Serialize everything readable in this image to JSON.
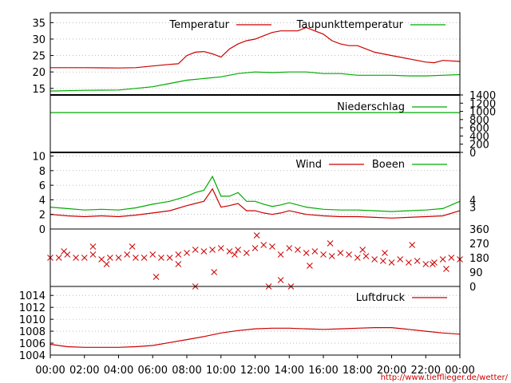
{
  "colors": {
    "red": "#cc0000",
    "green": "#00aa00",
    "grid": "#999999",
    "axis": "#000000"
  },
  "footer_link": "http://www.tiefflieger.de/wetter/",
  "x_ticks": [
    "00:00",
    "02:00",
    "04:00",
    "06:00",
    "08:00",
    "10:00",
    "12:00",
    "14:00",
    "16:00",
    "18:00",
    "20:00",
    "22:00",
    "00:00"
  ],
  "chart_data": [
    {
      "type": "line",
      "panel": "temperature",
      "x_range_hours": [
        0,
        24
      ],
      "ylim": [
        13,
        38
      ],
      "y_ticks": [
        "15",
        "20",
        "25",
        "30",
        "35"
      ],
      "series": [
        {
          "name": "Temperatur",
          "color": "#cc0000",
          "x": [
            0,
            2,
            4,
            5,
            6,
            7,
            7.5,
            8,
            8.5,
            9,
            9.5,
            10,
            10.5,
            11,
            11.5,
            12,
            12.5,
            13,
            13.5,
            14,
            14.5,
            15,
            15.5,
            16,
            16.5,
            17,
            17.5,
            18,
            18.5,
            19,
            19.5,
            20,
            21,
            22,
            22.5,
            23,
            24
          ],
          "y": [
            21.3,
            21.3,
            21.2,
            21.3,
            21.8,
            22.3,
            22.5,
            25,
            26,
            26.2,
            25.5,
            24.5,
            27,
            28.5,
            29.5,
            30,
            31,
            32,
            32.5,
            32.5,
            32.5,
            33.5,
            32.5,
            31.5,
            29.5,
            28.5,
            28,
            28,
            27,
            26,
            25.5,
            25,
            24,
            23,
            22.8,
            23.5,
            23.2
          ]
        },
        {
          "name": "Taupunkttemperatur",
          "color": "#00aa00",
          "x": [
            0,
            2,
            4,
            5,
            6,
            7,
            8,
            9,
            10,
            11,
            12,
            13,
            14,
            15,
            16,
            17,
            18,
            19,
            20,
            21,
            22,
            23,
            24
          ],
          "y": [
            14.2,
            14.4,
            14.5,
            15,
            15.5,
            16.5,
            17.5,
            18,
            18.5,
            19.5,
            20,
            19.8,
            20,
            20,
            19.5,
            19.5,
            19,
            19,
            19,
            18.8,
            18.8,
            19,
            19.2
          ]
        }
      ]
    },
    {
      "type": "line",
      "panel": "precipitation",
      "x_range_hours": [
        0,
        24
      ],
      "ylim": [
        0,
        1400
      ],
      "y_ticks": [
        "0",
        "200",
        "400",
        "600",
        "800",
        "1000",
        "1200",
        "1400"
      ],
      "series": [
        {
          "name": "Niederschlag",
          "color": "#00aa00",
          "x": [
            0,
            24
          ],
          "y": [
            970,
            970
          ]
        }
      ]
    },
    {
      "type": "line",
      "panel": "wind",
      "x_range_hours": [
        0,
        24
      ],
      "ylim": [
        0,
        10.5
      ],
      "y_ticks": [
        "0",
        "2",
        "4",
        "6",
        "8",
        "10"
      ],
      "right_ticks": [
        "3",
        "4"
      ],
      "series": [
        {
          "name": "Wind",
          "color": "#cc0000",
          "x": [
            0,
            1,
            2,
            3,
            4,
            5,
            6,
            7,
            8,
            8.5,
            9,
            9.5,
            10,
            10.5,
            11,
            11.5,
            12,
            12.5,
            13,
            13.5,
            14,
            15,
            16,
            17,
            18,
            19,
            20,
            21,
            22,
            23,
            24
          ],
          "y": [
            2,
            1.8,
            1.7,
            1.8,
            1.7,
            1.9,
            2.2,
            2.5,
            3.2,
            3.5,
            3.8,
            5.5,
            3,
            3.2,
            3.5,
            2.5,
            2.5,
            2.2,
            2,
            2.2,
            2.5,
            2,
            1.8,
            1.7,
            1.7,
            1.6,
            1.5,
            1.6,
            1.7,
            1.8,
            2.5
          ]
        },
        {
          "name": "Boeen",
          "color": "#00aa00",
          "x": [
            0,
            1,
            2,
            3,
            4,
            5,
            6,
            7,
            8,
            8.5,
            9,
            9.5,
            10,
            10.5,
            11,
            11.5,
            12,
            12.5,
            13,
            13.5,
            14,
            15,
            16,
            17,
            18,
            19,
            20,
            21,
            22,
            23,
            24
          ],
          "y": [
            3,
            2.8,
            2.6,
            2.7,
            2.6,
            2.9,
            3.4,
            3.8,
            4.5,
            5,
            5.3,
            7.2,
            4.5,
            4.5,
            5,
            3.8,
            3.8,
            3.4,
            3.1,
            3.3,
            3.6,
            3,
            2.7,
            2.6,
            2.6,
            2.5,
            2.4,
            2.5,
            2.6,
            2.8,
            3.8
          ]
        }
      ]
    },
    {
      "type": "scatter",
      "panel": "wind_direction",
      "x_range_hours": [
        0,
        24
      ],
      "ylim": [
        0,
        360
      ],
      "right_ticks": [
        "0",
        "90",
        "180",
        "270",
        "360"
      ],
      "series": [
        {
          "color": "#cc0000",
          "x": [
            0,
            0.5,
            1,
            1.5,
            2,
            2.5,
            3,
            3.5,
            4,
            4.5,
            5,
            5.5,
            6,
            6.5,
            7,
            7.5,
            8,
            8.5,
            9,
            9.5,
            10,
            10.5,
            11,
            11.5,
            12,
            12.5,
            13,
            13.5,
            14,
            14.5,
            15,
            15.5,
            16,
            16.5,
            17,
            17.5,
            18,
            18.5,
            19,
            19.5,
            20,
            20.5,
            21,
            21.5,
            22,
            22.5,
            23,
            23.5,
            24
          ],
          "y": [
            180,
            180,
            200,
            180,
            180,
            200,
            170,
            180,
            180,
            200,
            180,
            180,
            200,
            180,
            180,
            200,
            210,
            230,
            220,
            230,
            240,
            220,
            230,
            210,
            240,
            260,
            250,
            200,
            240,
            230,
            210,
            220,
            200,
            190,
            210,
            200,
            180,
            190,
            170,
            160,
            150,
            170,
            150,
            160,
            140,
            150,
            170,
            180,
            170
          ]
        },
        {
          "color": "#cc0000",
          "x": [
            0.8,
            2.5,
            3.3,
            4.8,
            6.2,
            7.5,
            8.5,
            9.6,
            10.8,
            12.1,
            12.8,
            13.5,
            14.1,
            15.2,
            16.4,
            18.3,
            19.6,
            21.2,
            22.4,
            23.2
          ],
          "y": [
            220,
            250,
            140,
            250,
            60,
            140,
            0,
            90,
            200,
            320,
            0,
            40,
            0,
            130,
            270,
            230,
            210,
            260,
            140,
            110
          ]
        }
      ]
    },
    {
      "type": "line",
      "panel": "pressure",
      "x_range_hours": [
        0,
        24
      ],
      "ylim": [
        1004,
        1015.5
      ],
      "y_ticks": [
        "1004",
        "1006",
        "1008",
        "1010",
        "1012",
        "1014"
      ],
      "series": [
        {
          "name": "Luftdruck",
          "color": "#cc0000",
          "x": [
            0,
            1,
            2,
            3,
            4,
            5,
            6,
            7,
            8,
            9,
            10,
            11,
            12,
            13,
            14,
            15,
            16,
            17,
            18,
            19,
            20,
            21,
            22,
            23,
            24
          ],
          "y": [
            1005.8,
            1005.4,
            1005.3,
            1005.3,
            1005.3,
            1005.4,
            1005.6,
            1006.1,
            1006.6,
            1007.1,
            1007.7,
            1008.1,
            1008.4,
            1008.5,
            1008.5,
            1008.4,
            1008.3,
            1008.4,
            1008.5,
            1008.6,
            1008.6,
            1008.3,
            1008.0,
            1007.7,
            1007.5
          ]
        }
      ]
    }
  ]
}
